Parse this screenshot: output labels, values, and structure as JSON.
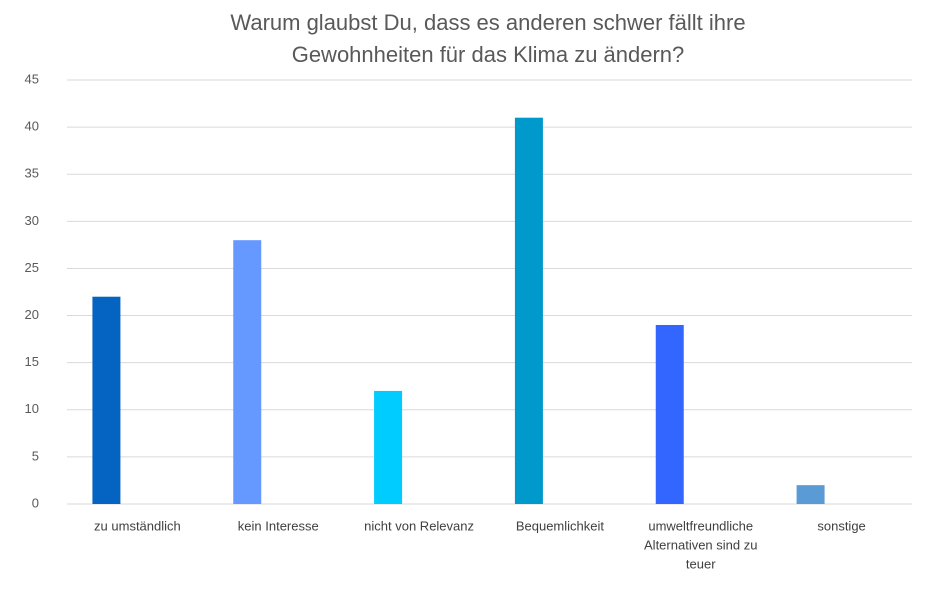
{
  "chart_data": {
    "type": "bar",
    "title_lines": [
      "Warum glaubst Du, dass es anderen schwer fällt ihre",
      "Gewohnheiten für das Klima zu ändern?"
    ],
    "categories": [
      [
        "zu umständlich"
      ],
      [
        "kein Interesse"
      ],
      [
        "nicht von Relevanz"
      ],
      [
        "Bequemlichkeit"
      ],
      [
        "umweltfreundliche",
        "Alternativen sind zu",
        "teuer"
      ],
      [
        "sonstige"
      ]
    ],
    "values": [
      22,
      28,
      12,
      41,
      19,
      2
    ],
    "colors": [
      "#0563C1",
      "#6699FF",
      "#00CCFF",
      "#0099CC",
      "#3366FF",
      "#5B9BD5"
    ],
    "ylim": [
      0,
      45
    ],
    "yticks": [
      0,
      5,
      10,
      15,
      20,
      25,
      30,
      35,
      40,
      45
    ],
    "grid": true,
    "legend": "none",
    "xlabel": "",
    "ylabel": ""
  }
}
